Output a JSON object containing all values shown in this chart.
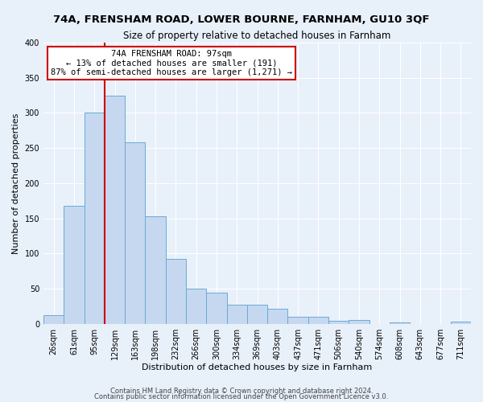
{
  "title": "74A, FRENSHAM ROAD, LOWER BOURNE, FARNHAM, GU10 3QF",
  "subtitle": "Size of property relative to detached houses in Farnham",
  "xlabel": "Distribution of detached houses by size in Farnham",
  "ylabel": "Number of detached properties",
  "footer1": "Contains HM Land Registry data © Crown copyright and database right 2024.",
  "footer2": "Contains public sector information licensed under the Open Government Licence v3.0.",
  "bar_labels": [
    "26sqm",
    "61sqm",
    "95sqm",
    "129sqm",
    "163sqm",
    "198sqm",
    "232sqm",
    "266sqm",
    "300sqm",
    "334sqm",
    "369sqm",
    "403sqm",
    "437sqm",
    "471sqm",
    "506sqm",
    "540sqm",
    "574sqm",
    "608sqm",
    "643sqm",
    "677sqm",
    "711sqm"
  ],
  "bar_values": [
    12,
    168,
    300,
    325,
    258,
    153,
    92,
    50,
    44,
    27,
    27,
    21,
    10,
    10,
    4,
    5,
    0,
    2,
    0,
    0,
    3
  ],
  "bar_color": "#c5d8f0",
  "bar_edge_color": "#6aaad4",
  "vline_color": "#cc0000",
  "vline_x": 2.5,
  "annotation_box_color": "#ffffff",
  "annotation_box_edge": "#cc0000",
  "highlight_label": "74A FRENSHAM ROAD: 97sqm",
  "annotation_line1": "← 13% of detached houses are smaller (191)",
  "annotation_line2": "87% of semi-detached houses are larger (1,271) →",
  "ylim": [
    0,
    400
  ],
  "yticks": [
    0,
    50,
    100,
    150,
    200,
    250,
    300,
    350,
    400
  ],
  "bg_color": "#e8f0fa",
  "fig_bg_color": "#e8f0fa",
  "grid_color": "#ffffff",
  "title_fontsize": 9.5,
  "subtitle_fontsize": 8.5,
  "xlabel_fontsize": 8,
  "ylabel_fontsize": 8,
  "tick_fontsize": 7,
  "ann_fontsize": 7.5,
  "footer_fontsize": 6
}
